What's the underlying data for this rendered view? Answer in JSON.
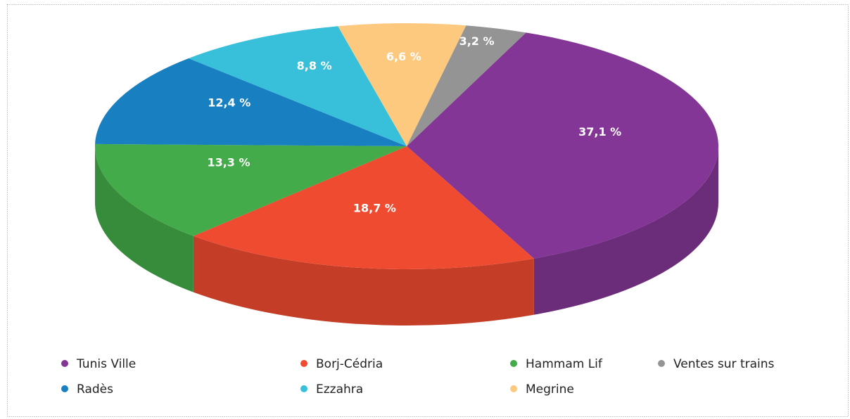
{
  "chart_data": {
    "type": "pie",
    "categories": [
      "Tunis Ville",
      "Borj-Cédria",
      "Hammam Lif",
      "Radès",
      "Ezzahra",
      "Megrine",
      "Ventes sur trains"
    ],
    "values": [
      37.1,
      18.7,
      13.3,
      12.4,
      8.8,
      6.6,
      3.2
    ],
    "value_labels": [
      "37,1 %",
      "18,7 %",
      "13,3 %",
      "12,4 %",
      "8,8 %",
      "6,6 %",
      "3,2 %"
    ],
    "colors": [
      "#833695",
      "#ef4b30",
      "#43ab49",
      "#1880c1",
      "#38c0db",
      "#fdc97f",
      "#949494"
    ]
  }
}
